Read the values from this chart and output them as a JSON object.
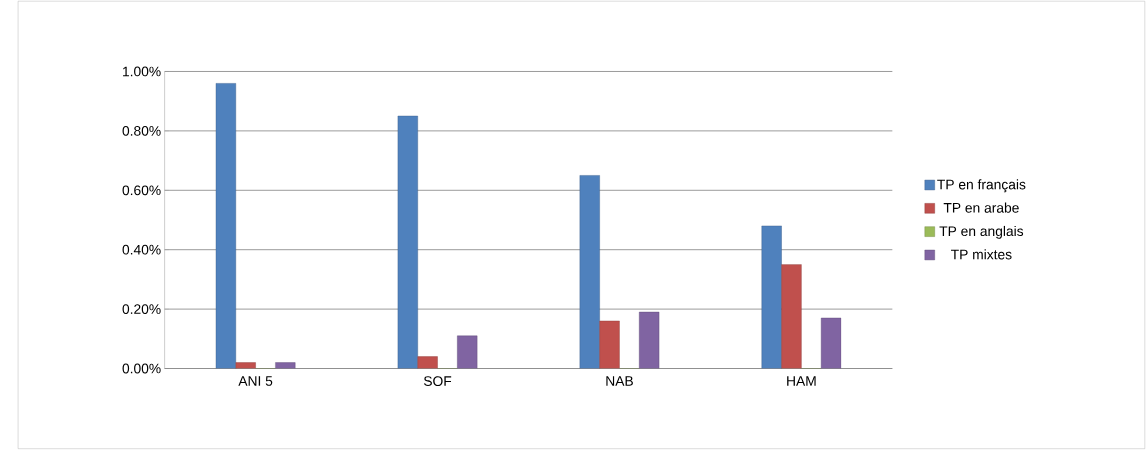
{
  "chart_data": {
    "type": "bar",
    "categories": [
      "ANI 5",
      "SOF",
      "NAB",
      "HAM"
    ],
    "series": [
      {
        "name": "TP en français",
        "color": "#4f81bd",
        "values": [
          0.96,
          0.85,
          0.65,
          0.48
        ]
      },
      {
        "name": "TP en arabe",
        "color": "#c0504d",
        "values": [
          0.02,
          0.04,
          0.16,
          0.35
        ]
      },
      {
        "name": "TP en anglais",
        "color": "#9bbb59",
        "values": [
          0,
          0,
          0,
          0
        ]
      },
      {
        "name": "TP mixtes",
        "color": "#8064a2",
        "values": [
          0.02,
          0.11,
          0.19,
          0.17
        ]
      }
    ],
    "ylim": [
      0,
      1
    ],
    "yticks": [
      {
        "value": 0,
        "label": "0.00%"
      },
      {
        "value": 0.2,
        "label": "0.20%"
      },
      {
        "value": 0.4,
        "label": "0.40%"
      },
      {
        "value": 0.6,
        "label": "0.60%"
      },
      {
        "value": 0.8,
        "label": "0.80%"
      },
      {
        "value": 1,
        "label": "1.00%"
      }
    ],
    "grid": "y",
    "legend": "right"
  }
}
